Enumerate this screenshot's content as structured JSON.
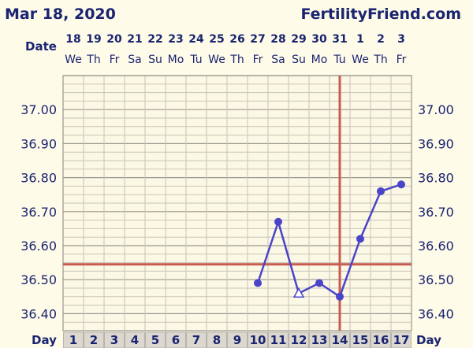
{
  "header": {
    "date": "Mar 18, 2020",
    "site": "FertilityFriend.com"
  },
  "row_labels": {
    "date": "Date",
    "day": "Day"
  },
  "colors": {
    "series_line": "#4a44c8",
    "coverline": "#c85c50",
    "ovulation_line": "#c85c50",
    "grid_minor": "#c9c4b8",
    "grid_major": "#9b968c",
    "text": "#1a2470",
    "background": "#fefbe9"
  },
  "chart_data": {
    "type": "line",
    "ylim": [
      36.35,
      37.1
    ],
    "yticks": [
      "37.00",
      "36.90",
      "36.80",
      "36.70",
      "36.60",
      "36.50",
      "36.40"
    ],
    "dates": [
      "18",
      "19",
      "20",
      "21",
      "22",
      "23",
      "24",
      "25",
      "26",
      "27",
      "28",
      "29",
      "30",
      "31",
      "1",
      "2",
      "3"
    ],
    "weekdays": [
      "We",
      "Th",
      "Fr",
      "Sa",
      "Su",
      "Mo",
      "Tu",
      "We",
      "Th",
      "Fr",
      "Sa",
      "Su",
      "Mo",
      "Tu",
      "We",
      "Th",
      "Fr"
    ],
    "days": [
      "1",
      "2",
      "3",
      "4",
      "5",
      "6",
      "7",
      "8",
      "9",
      "10",
      "11",
      "12",
      "13",
      "14",
      "15",
      "16",
      "17"
    ],
    "series": [
      {
        "points": [
          {
            "day": 10,
            "temp": 36.49,
            "marker": "circle"
          },
          {
            "day": 11,
            "temp": 36.67,
            "marker": "circle"
          },
          {
            "day": 12,
            "temp": 36.46,
            "marker": "triangle-open"
          },
          {
            "day": 13,
            "temp": 36.49,
            "marker": "circle"
          },
          {
            "day": 14,
            "temp": 36.45,
            "marker": "circle"
          },
          {
            "day": 15,
            "temp": 36.62,
            "marker": "circle"
          },
          {
            "day": 16,
            "temp": 36.76,
            "marker": "circle"
          },
          {
            "day": 17,
            "temp": 36.78,
            "marker": "circle"
          }
        ]
      }
    ],
    "coverline": 36.545,
    "ovulation_day": 14
  }
}
